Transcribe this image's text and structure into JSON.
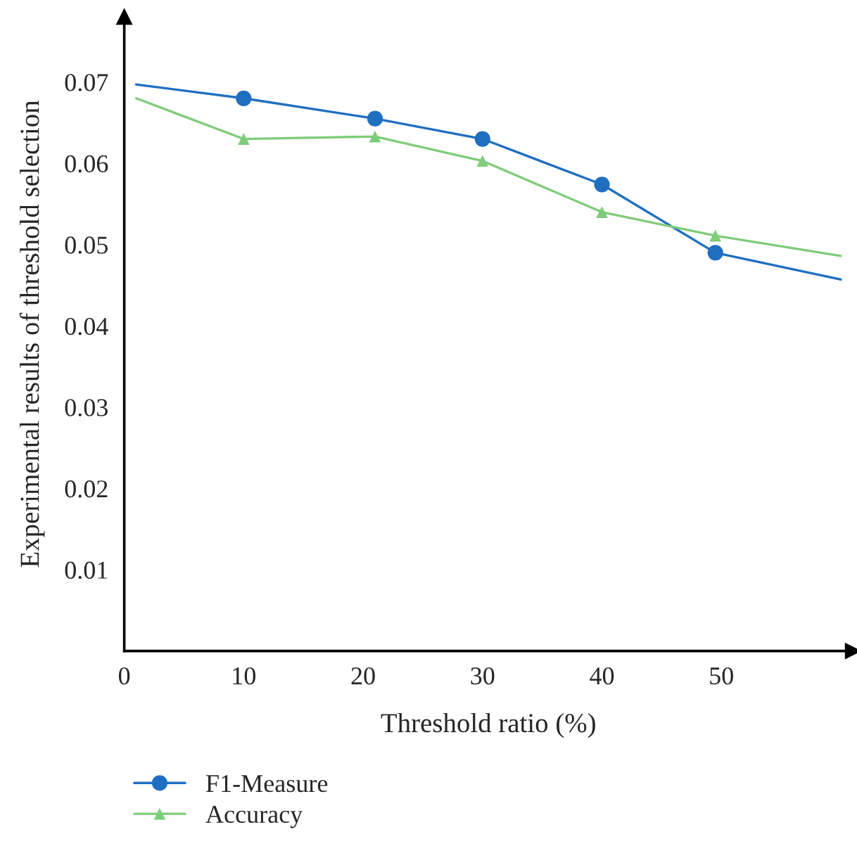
{
  "chart_data": {
    "type": "line",
    "xlabel": "Threshold ratio (%)",
    "ylabel": "Experimental results of threshold selection",
    "x": [
      1,
      10,
      21,
      30,
      40,
      49.5,
      60
    ],
    "series": [
      {
        "name": "F1-Measure",
        "color": "#1f6fc1",
        "marker": "circle",
        "values": [
          0.0697,
          0.068,
          0.0655,
          0.063,
          0.0574,
          0.049,
          0.0457
        ]
      },
      {
        "name": "Accuracy",
        "color": "#7fcc7a",
        "marker": "triangle",
        "values": [
          0.068,
          0.063,
          0.0633,
          0.0603,
          0.054,
          0.0511,
          0.0486
        ]
      }
    ],
    "xlim": [
      0,
      61
    ],
    "ylim": [
      0,
      0.078
    ],
    "xticks": [
      0,
      10,
      20,
      30,
      40,
      50
    ],
    "yticks": [
      0.01,
      0.02,
      0.03,
      0.04,
      0.05,
      0.06,
      0.07
    ],
    "grid": false,
    "legend": "bottom left",
    "line_style": "solid"
  }
}
